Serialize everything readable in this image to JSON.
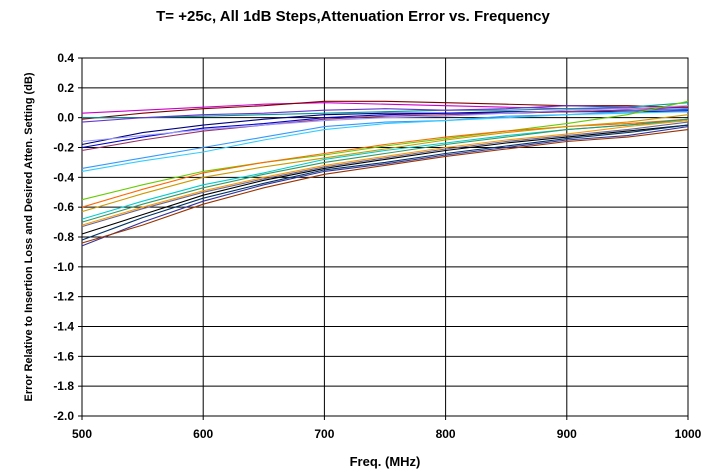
{
  "chart_data": {
    "type": "line",
    "title": "T= +25c, All 1dB Steps,Attenuation Error vs. Frequency",
    "xlabel": "Freq. (MHz)",
    "ylabel": "Error Relative to Insertion Loss and Desired Atten. Setting (dB)",
    "xlim": [
      500,
      1000
    ],
    "ylim": [
      -2.0,
      0.4
    ],
    "x_ticks": [
      "500",
      "600",
      "700",
      "800",
      "900",
      "1000"
    ],
    "y_ticks": [
      "0.4",
      "0.2",
      "0.0",
      "-0.2",
      "-0.4",
      "-0.6",
      "-0.8",
      "-1.0",
      "-1.2",
      "-1.4",
      "-1.6",
      "-1.8",
      "-2.0"
    ],
    "grid": true,
    "legend": "none",
    "x": [
      500,
      550,
      600,
      650,
      700,
      750,
      800,
      850,
      900,
      950,
      1000
    ],
    "series": [
      {
        "color": "#cc00cc",
        "values": [
          0.03,
          0.05,
          0.07,
          0.09,
          0.1,
          0.09,
          0.08,
          0.07,
          0.06,
          0.06,
          0.07
        ]
      },
      {
        "color": "#800000",
        "values": [
          -0.01,
          0.03,
          0.06,
          0.08,
          0.11,
          0.11,
          0.1,
          0.09,
          0.08,
          0.08,
          0.07
        ]
      },
      {
        "color": "#009999",
        "values": [
          0.0,
          0.0,
          0.01,
          0.02,
          0.03,
          0.04,
          0.05,
          0.05,
          0.06,
          0.07,
          0.1
        ]
      },
      {
        "color": "#6633cc",
        "values": [
          -0.03,
          0.0,
          0.02,
          0.03,
          0.05,
          0.06,
          0.05,
          0.06,
          0.08,
          0.07,
          0.05
        ]
      },
      {
        "color": "#000080",
        "values": [
          -0.18,
          -0.1,
          -0.05,
          -0.01,
          0.02,
          0.03,
          0.03,
          0.04,
          0.04,
          0.04,
          0.04
        ]
      },
      {
        "color": "#0000cc",
        "values": [
          -0.2,
          -0.13,
          -0.07,
          -0.04,
          0.0,
          0.02,
          0.03,
          0.03,
          0.04,
          0.05,
          0.05
        ]
      },
      {
        "color": "#993366",
        "values": [
          -0.22,
          -0.15,
          -0.09,
          -0.05,
          -0.01,
          0.01,
          0.02,
          0.03,
          0.04,
          0.05,
          0.06
        ]
      },
      {
        "color": "#9999ff",
        "values": [
          -0.16,
          -0.12,
          -0.08,
          -0.05,
          -0.02,
          0.0,
          0.01,
          0.03,
          0.05,
          0.06,
          0.08
        ]
      },
      {
        "color": "#3399ff",
        "values": [
          -0.34,
          -0.27,
          -0.2,
          -0.13,
          -0.06,
          -0.03,
          -0.02,
          0.01,
          0.02,
          0.04,
          0.06
        ]
      },
      {
        "color": "#33ccff",
        "values": [
          -0.36,
          -0.29,
          -0.23,
          -0.15,
          -0.08,
          -0.04,
          -0.02,
          0.0,
          0.02,
          0.03,
          0.04
        ]
      },
      {
        "color": "#66cc00",
        "values": [
          -0.55,
          -0.45,
          -0.36,
          -0.3,
          -0.25,
          -0.19,
          -0.14,
          -0.09,
          -0.04,
          0.02,
          0.11
        ]
      },
      {
        "color": "#ff6600",
        "values": [
          -0.6,
          -0.48,
          -0.37,
          -0.3,
          -0.24,
          -0.18,
          -0.13,
          -0.09,
          -0.06,
          -0.04,
          -0.01
        ]
      },
      {
        "color": "#cc9900",
        "values": [
          -0.63,
          -0.51,
          -0.4,
          -0.33,
          -0.27,
          -0.21,
          -0.15,
          -0.1,
          -0.06,
          -0.03,
          0.02
        ]
      },
      {
        "color": "#00cccc",
        "values": [
          -0.68,
          -0.56,
          -0.45,
          -0.37,
          -0.28,
          -0.22,
          -0.17,
          -0.12,
          -0.08,
          -0.05,
          -0.02
        ]
      },
      {
        "color": "#339966",
        "values": [
          -0.7,
          -0.58,
          -0.47,
          -0.38,
          -0.3,
          -0.24,
          -0.18,
          -0.13,
          -0.08,
          -0.05,
          -0.01
        ]
      },
      {
        "color": "#ff9900",
        "values": [
          -0.72,
          -0.6,
          -0.49,
          -0.4,
          -0.32,
          -0.26,
          -0.2,
          -0.15,
          -0.11,
          -0.06,
          -0.02
        ]
      },
      {
        "color": "#666699",
        "values": [
          -0.73,
          -0.61,
          -0.5,
          -0.41,
          -0.33,
          -0.27,
          -0.21,
          -0.16,
          -0.12,
          -0.08,
          -0.03
        ]
      },
      {
        "color": "#000000",
        "values": [
          -0.78,
          -0.65,
          -0.52,
          -0.42,
          -0.34,
          -0.28,
          -0.22,
          -0.17,
          -0.13,
          -0.09,
          -0.05
        ]
      },
      {
        "color": "#003366",
        "values": [
          -0.82,
          -0.67,
          -0.54,
          -0.44,
          -0.35,
          -0.3,
          -0.24,
          -0.19,
          -0.14,
          -0.1,
          -0.05
        ]
      },
      {
        "color": "#333399",
        "values": [
          -0.86,
          -0.7,
          -0.56,
          -0.45,
          -0.36,
          -0.31,
          -0.25,
          -0.2,
          -0.15,
          -0.12,
          -0.06
        ]
      },
      {
        "color": "#993300",
        "values": [
          -0.84,
          -0.72,
          -0.58,
          -0.47,
          -0.38,
          -0.32,
          -0.26,
          -0.21,
          -0.16,
          -0.13,
          -0.08
        ]
      }
    ]
  }
}
